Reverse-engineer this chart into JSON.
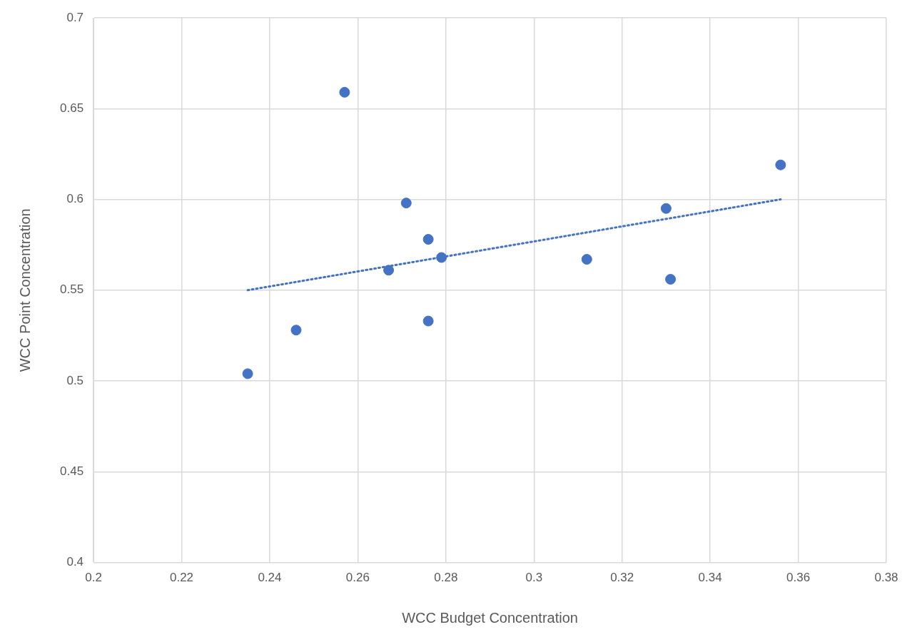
{
  "chart_data": {
    "type": "scatter",
    "xlabel": "WCC Budget Concentration",
    "ylabel": "WCC Point Concentration",
    "xlim": [
      0.2,
      0.38
    ],
    "xticks": [
      0.2,
      0.22,
      0.24,
      0.26,
      0.28,
      0.3,
      0.32,
      0.34,
      0.36,
      0.38
    ],
    "ylim": [
      0.4,
      0.7
    ],
    "yticks": [
      0.4,
      0.45,
      0.5,
      0.55,
      0.6,
      0.65,
      0.7
    ],
    "grid": true,
    "legend": false,
    "marker": "circle",
    "series": [
      {
        "type": "scatter",
        "color": "#4472c4",
        "x": [
          0.235,
          0.246,
          0.257,
          0.267,
          0.271,
          0.276,
          0.276,
          0.279,
          0.312,
          0.33,
          0.331,
          0.356
        ],
        "values": [
          0.504,
          0.528,
          0.659,
          0.561,
          0.598,
          0.578,
          0.533,
          0.568,
          0.567,
          0.595,
          0.556,
          0.619
        ]
      },
      {
        "type": "line",
        "color": "#4472c4",
        "line_style": "dotted",
        "marker": "none",
        "x": [
          0.235,
          0.356
        ],
        "values": [
          0.55,
          0.6
        ]
      }
    ]
  }
}
